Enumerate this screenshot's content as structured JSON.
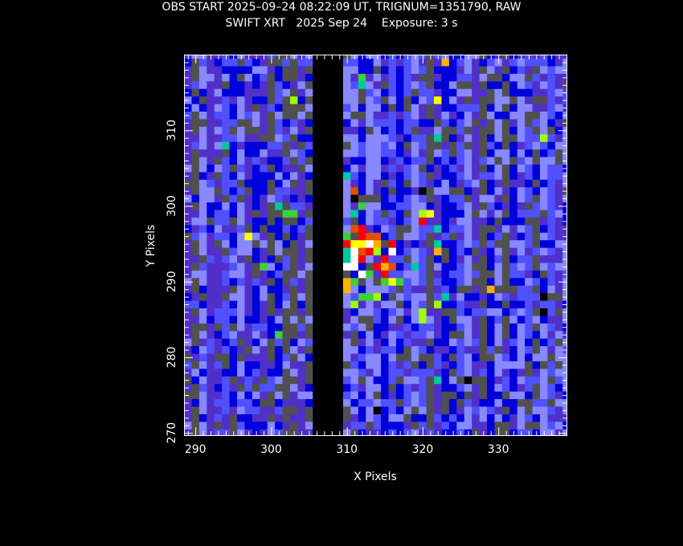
{
  "title_line1": "OBS START 2025–09–24 08:22:09 UT, TRIGNUM=1351790, RAW",
  "title_line2": "SWIFT XRT   2025 Sep 24    Exposure: 3 s",
  "chart_data": {
    "type": "heatmap",
    "xlabel": "X Pixels",
    "ylabel": "Y Pixels",
    "xlim": [
      288.6,
      339.0
    ],
    "ylim": [
      269.7,
      319.9
    ],
    "x_ticks": [
      290,
      300,
      310,
      320,
      330
    ],
    "y_ticks": [
      270,
      280,
      290,
      300,
      310
    ],
    "colormap": [
      "#000000",
      "#5050ff",
      "#0000dd",
      "#5030c8",
      "#8888ff",
      "#505050",
      "#00c8a0",
      "#3cd03c",
      "#a0ff00",
      "#ffff00",
      "#ffb000",
      "#e05000",
      "#ff0000",
      "#ffffff"
    ],
    "background_color": "#505050",
    "masked_columns": [
      306,
      307,
      308,
      309
    ],
    "x_start": 289,
    "y_start": 270,
    "hot_pixels": [
      {
        "x": 310,
        "y": 296,
        "v": 7
      },
      {
        "x": 310,
        "y": 295,
        "v": 12
      },
      {
        "x": 310,
        "y": 294,
        "v": 6
      },
      {
        "x": 311,
        "y": 295,
        "v": 9
      },
      {
        "x": 311,
        "y": 294,
        "v": 13
      },
      {
        "x": 311,
        "y": 293,
        "v": 13
      },
      {
        "x": 312,
        "y": 297,
        "v": 12
      },
      {
        "x": 312,
        "y": 296,
        "v": 12
      },
      {
        "x": 312,
        "y": 295,
        "v": 9
      },
      {
        "x": 312,
        "y": 294,
        "v": 11
      },
      {
        "x": 312,
        "y": 293,
        "v": 12
      },
      {
        "x": 313,
        "y": 296,
        "v": 11
      },
      {
        "x": 313,
        "y": 295,
        "v": 13
      },
      {
        "x": 313,
        "y": 294,
        "v": 12
      },
      {
        "x": 314,
        "y": 296,
        "v": 11
      },
      {
        "x": 314,
        "y": 295,
        "v": 10
      },
      {
        "x": 314,
        "y": 294,
        "v": 8
      },
      {
        "x": 315,
        "y": 293,
        "v": 12
      },
      {
        "x": 315,
        "y": 292,
        "v": 10
      },
      {
        "x": 315,
        "y": 291,
        "v": 12
      },
      {
        "x": 316,
        "y": 295,
        "v": 12
      },
      {
        "x": 316,
        "y": 294,
        "v": 13
      },
      {
        "x": 316,
        "y": 292,
        "v": 11
      },
      {
        "x": 311,
        "y": 292,
        "v": 13
      },
      {
        "x": 310,
        "y": 292,
        "v": 13
      },
      {
        "x": 311,
        "y": 290,
        "v": 7
      },
      {
        "x": 312,
        "y": 291,
        "v": 13
      },
      {
        "x": 313,
        "y": 291,
        "v": 7
      },
      {
        "x": 315,
        "y": 290,
        "v": 7
      },
      {
        "x": 316,
        "y": 290,
        "v": 9
      },
      {
        "x": 317,
        "y": 290,
        "v": 7
      },
      {
        "x": 310,
        "y": 290,
        "v": 10
      },
      {
        "x": 310,
        "y": 293,
        "v": 6
      },
      {
        "x": 314,
        "y": 292,
        "v": 12
      },
      {
        "x": 312,
        "y": 288,
        "v": 7
      },
      {
        "x": 313,
        "y": 288,
        "v": 7
      },
      {
        "x": 314,
        "y": 288,
        "v": 8
      },
      {
        "x": 311,
        "y": 287,
        "v": 8
      },
      {
        "x": 311,
        "y": 299,
        "v": 6
      },
      {
        "x": 312,
        "y": 300,
        "v": 7
      },
      {
        "x": 311,
        "y": 301,
        "v": 0
      },
      {
        "x": 311,
        "y": 302,
        "v": 11
      },
      {
        "x": 311,
        "y": 297,
        "v": 11
      },
      {
        "x": 310,
        "y": 304,
        "v": 6
      },
      {
        "x": 320,
        "y": 302,
        "v": 0
      },
      {
        "x": 320,
        "y": 298,
        "v": 12
      },
      {
        "x": 320,
        "y": 299,
        "v": 8
      },
      {
        "x": 321,
        "y": 299,
        "v": 9
      },
      {
        "x": 319,
        "y": 292,
        "v": 6
      },
      {
        "x": 322,
        "y": 295,
        "v": 6
      },
      {
        "x": 322,
        "y": 294,
        "v": 10
      },
      {
        "x": 322,
        "y": 297,
        "v": 6
      },
      {
        "x": 320,
        "y": 286,
        "v": 8
      },
      {
        "x": 320,
        "y": 285,
        "v": 8
      },
      {
        "x": 322,
        "y": 287,
        "v": 8
      },
      {
        "x": 323,
        "y": 288,
        "v": 6
      },
      {
        "x": 322,
        "y": 309,
        "v": 6
      },
      {
        "x": 322,
        "y": 314,
        "v": 9
      },
      {
        "x": 323,
        "y": 319,
        "v": 10
      },
      {
        "x": 329,
        "y": 289,
        "v": 10
      },
      {
        "x": 336,
        "y": 309,
        "v": 8
      },
      {
        "x": 336,
        "y": 288,
        "v": 0
      },
      {
        "x": 336,
        "y": 286,
        "v": 0
      },
      {
        "x": 326,
        "y": 277,
        "v": 0
      },
      {
        "x": 322,
        "y": 277,
        "v": 6
      },
      {
        "x": 314,
        "y": 273,
        "v": 0
      },
      {
        "x": 309,
        "y": 277,
        "v": 0
      },
      {
        "x": 312,
        "y": 316,
        "v": 6
      },
      {
        "x": 312,
        "y": 317,
        "v": 7
      },
      {
        "x": 303,
        "y": 314,
        "v": 8
      },
      {
        "x": 302,
        "y": 299,
        "v": 7
      },
      {
        "x": 303,
        "y": 299,
        "v": 7
      },
      {
        "x": 301,
        "y": 300,
        "v": 6
      },
      {
        "x": 297,
        "y": 296,
        "v": 9
      },
      {
        "x": 299,
        "y": 292,
        "v": 7
      },
      {
        "x": 301,
        "y": 283,
        "v": 7
      },
      {
        "x": 294,
        "y": 308,
        "v": 6
      },
      {
        "x": 310,
        "y": 289,
        "v": 10
      }
    ]
  }
}
